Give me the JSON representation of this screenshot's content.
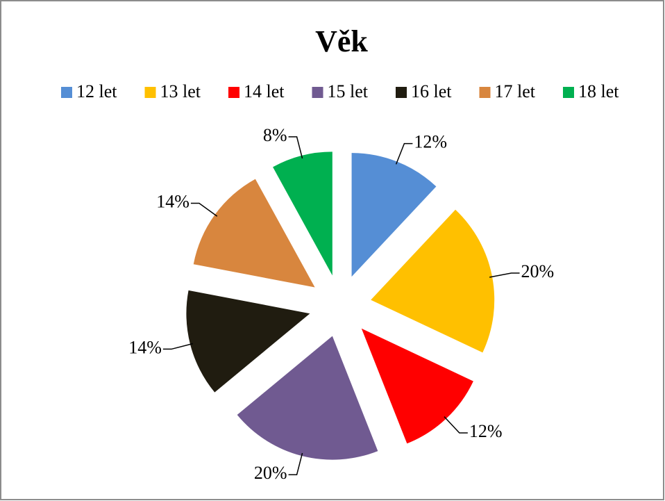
{
  "chart_data": {
    "type": "pie",
    "title": "Věk",
    "categories": [
      "12 let",
      "13 let",
      "14 let",
      "15 let",
      "16 let",
      "17 let",
      "18 let"
    ],
    "values": [
      12,
      20,
      12,
      20,
      14,
      14,
      8
    ],
    "value_labels": [
      "12%",
      "20%",
      "12%",
      "20%",
      "14%",
      "14%",
      "8%"
    ],
    "colors": [
      "#558ed5",
      "#ffc000",
      "#ff0000",
      "#705a91",
      "#201c10",
      "#d8863e",
      "#00b050"
    ],
    "legend": "top"
  }
}
